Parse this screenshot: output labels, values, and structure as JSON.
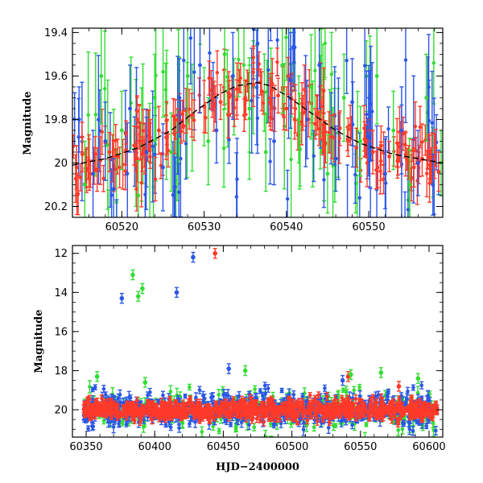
{
  "chart_data": [
    {
      "type": "scatter",
      "panel": "top",
      "title": "",
      "xlabel": "",
      "ylabel": "Magnitude",
      "xlim": [
        60514,
        60559
      ],
      "ylim": [
        20.25,
        19.38
      ],
      "y_inverted": true,
      "x_ticks": [
        60520,
        60530,
        60540,
        60550
      ],
      "x_tick_labels": [
        "60520",
        "60530",
        "60540",
        "60550"
      ],
      "y_ticks": [
        19.4,
        19.6,
        19.8,
        20.0,
        20.2
      ],
      "y_tick_labels": [
        "19.4",
        "19.6",
        "19.8",
        "20",
        "20.2"
      ],
      "grid": false,
      "legend": "none",
      "series_colors": [
        "#ff3a2a",
        "#2a57e6",
        "#33dd33"
      ],
      "model_curve": {
        "color": "#000000",
        "style": "dashed",
        "points": [
          [
            60514,
            20.01
          ],
          [
            60518,
            19.98
          ],
          [
            60522,
            19.93
          ],
          [
            60526,
            19.85
          ],
          [
            60529,
            19.76
          ],
          [
            60532,
            19.68
          ],
          [
            60534,
            19.645
          ],
          [
            60536.5,
            19.63
          ],
          [
            60538,
            19.645
          ],
          [
            60540,
            19.69
          ],
          [
            60543,
            19.77
          ],
          [
            60546,
            19.85
          ],
          [
            60549,
            19.91
          ],
          [
            60553,
            19.96
          ],
          [
            60559,
            20.0
          ]
        ]
      },
      "series": [
        {
          "color": "#ff3a2a",
          "x": [
            60514.5,
            60515.2,
            60516.0,
            60517.0,
            60518.5,
            60519.5,
            60520.5,
            60521.5,
            60522.5,
            60523.5,
            60524.5,
            60525.5,
            60526.5,
            60527.5,
            60528.5,
            60530.0,
            60531.0,
            60532.0,
            60533.0,
            60534.0,
            60535.0,
            60536.0,
            60537.0,
            60538.0,
            60539.0,
            60540.0,
            60541.0,
            60542.0,
            60543.5,
            60544.5,
            60545.5,
            60546.5,
            60547.5,
            60548.5,
            60549.5,
            60550.5,
            60551.5,
            60552.5,
            60553.5,
            60554.5,
            60555.5,
            60556.5,
            60557.5,
            60558.5
          ],
          "y": [
            20.02,
            19.96,
            19.99,
            20.03,
            19.95,
            19.97,
            19.94,
            19.92,
            19.96,
            19.9,
            19.85,
            19.88,
            19.8,
            19.83,
            19.78,
            19.74,
            19.7,
            19.72,
            19.68,
            19.66,
            19.7,
            19.64,
            19.67,
            19.72,
            19.69,
            19.75,
            19.8,
            19.77,
            19.82,
            19.86,
            19.88,
            19.84,
            19.9,
            19.93,
            19.89,
            19.95,
            19.92,
            19.97,
            19.99,
            19.96,
            20.02,
            19.98,
            20.01,
            20.04
          ],
          "err": [
            0.1,
            0.08,
            0.12,
            0.1,
            0.09,
            0.08,
            0.07,
            0.09,
            0.08,
            0.1,
            0.11,
            0.08,
            0.09,
            0.07,
            0.1,
            0.12,
            0.09,
            0.08,
            0.1,
            0.12,
            0.08,
            0.1,
            0.09,
            0.11,
            0.08,
            0.1,
            0.09,
            0.08,
            0.07,
            0.09,
            0.1,
            0.08,
            0.07,
            0.09,
            0.08,
            0.1,
            0.09,
            0.07,
            0.08,
            0.1,
            0.09,
            0.08,
            0.07,
            0.09
          ]
        },
        {
          "color": "#2a57e6",
          "x": [
            60514.8,
            60516.5,
            60518.0,
            60519.0,
            60521.0,
            60523.0,
            60525.0,
            60527.0,
            60529.5,
            60531.5,
            60533.5,
            60536.5,
            60538.5,
            60540.5,
            60542.5,
            60544.0,
            60546.0,
            60548.0,
            60550.0,
            60552.0,
            60554.0,
            60556.0,
            60557.8
          ],
          "y": [
            19.8,
            20.05,
            19.9,
            20.12,
            19.75,
            19.95,
            20.02,
            19.7,
            19.55,
            19.85,
            19.6,
            19.45,
            19.9,
            19.62,
            19.8,
            19.55,
            19.98,
            19.72,
            19.88,
            20.05,
            19.85,
            20.0,
            20.1
          ],
          "err": [
            0.15,
            0.2,
            0.18,
            0.14,
            0.2,
            0.16,
            0.2,
            0.18,
            0.22,
            0.15,
            0.2,
            0.25,
            0.2,
            0.22,
            0.18,
            0.2,
            0.15,
            0.2,
            0.18,
            0.16,
            0.2,
            0.15,
            0.14
          ]
        },
        {
          "color": "#33dd33",
          "x": [
            60515.5,
            60517.5,
            60520.0,
            60522.0,
            60524.0,
            60526.0,
            60528.0,
            60530.5,
            60532.5,
            60535.5,
            60537.5,
            60539.5,
            60541.5,
            60543.0,
            60545.0,
            60547.0,
            60549.0,
            60551.0,
            60553.0,
            60555.0,
            60557.0,
            60558.8
          ],
          "y": [
            20.1,
            19.6,
            19.85,
            20.15,
            19.7,
            19.95,
            19.6,
            19.9,
            19.5,
            19.75,
            19.95,
            19.55,
            19.8,
            19.65,
            20.05,
            19.7,
            19.9,
            19.6,
            19.85,
            20.1,
            19.7,
            20.0
          ],
          "err": [
            0.2,
            0.22,
            0.18,
            0.16,
            0.2,
            0.18,
            0.22,
            0.2,
            0.25,
            0.2,
            0.18,
            0.22,
            0.2,
            0.24,
            0.18,
            0.2,
            0.16,
            0.22,
            0.18,
            0.16,
            0.2,
            0.15
          ]
        }
      ]
    },
    {
      "type": "scatter",
      "panel": "bottom",
      "title": "",
      "xlabel": "HJD−2400000",
      "ylabel": "Magnitude",
      "xlim": [
        60340,
        60610
      ],
      "ylim": [
        21.4,
        11.6
      ],
      "y_inverted": true,
      "x_ticks": [
        60350,
        60400,
        60450,
        60500,
        60550,
        60600
      ],
      "x_tick_labels": [
        "60350",
        "60400",
        "60450",
        "60500",
        "60550",
        "60600"
      ],
      "y_ticks": [
        12,
        14,
        16,
        18,
        20
      ],
      "y_tick_labels": [
        "12",
        "14",
        "16",
        "18",
        "20"
      ],
      "grid": false,
      "legend": "none",
      "series_colors": [
        "#ff3a2a",
        "#2a57e6",
        "#33dd33"
      ],
      "outliers": {
        "red": [
          [
            60444,
            12.0
          ],
          [
            60541,
            18.3
          ],
          [
            60578,
            18.8
          ]
        ],
        "blue": [
          [
            60376,
            14.3
          ],
          [
            60416,
            14.0
          ],
          [
            60428,
            12.2
          ],
          [
            60454,
            17.9
          ],
          [
            60537,
            18.5
          ]
        ],
        "green": [
          [
            60384,
            13.1
          ],
          [
            60388,
            14.2
          ],
          [
            60391,
            13.8
          ],
          [
            60358,
            18.3
          ],
          [
            60393,
            18.6
          ],
          [
            60466,
            18.0
          ],
          [
            60543,
            18.2
          ],
          [
            60565,
            18.1
          ],
          [
            60592,
            18.4
          ]
        ]
      },
      "dense_band": {
        "center": 20.0,
        "x_range": [
          60348,
          60606
        ]
      }
    }
  ]
}
